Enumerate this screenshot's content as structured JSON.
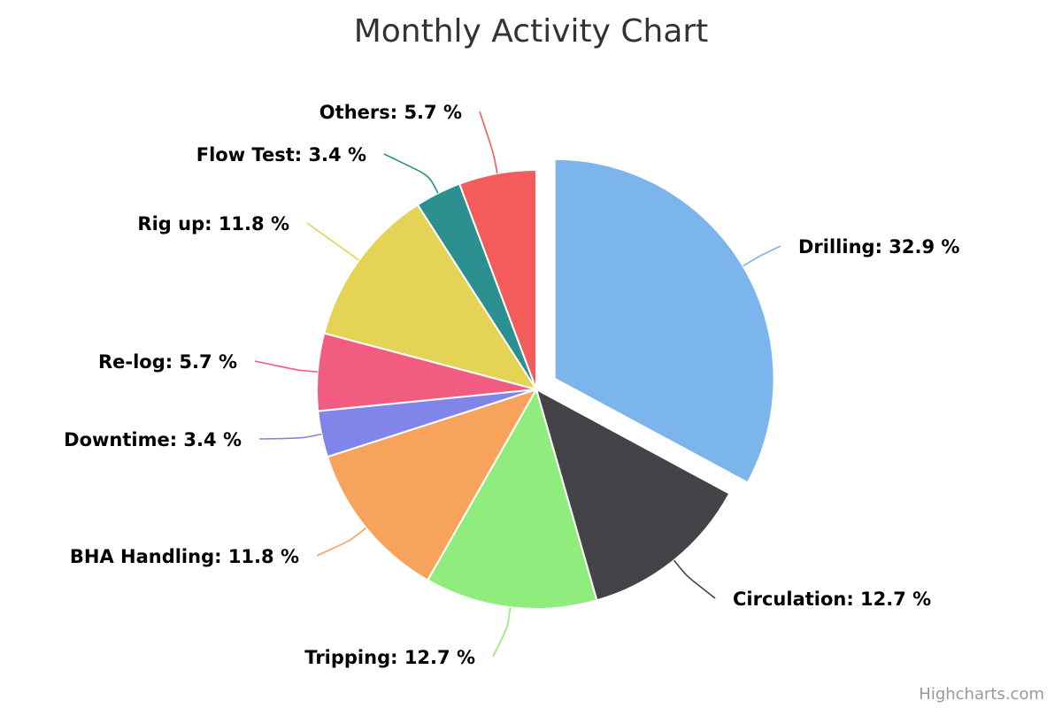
{
  "chart_data": {
    "type": "pie",
    "title": "Monthly Activity Chart",
    "label_suffix": " %",
    "slices": [
      {
        "name": "Drilling",
        "value": 32.9,
        "color": "#7cb5ec",
        "sliced": true
      },
      {
        "name": "Circulation",
        "value": 12.7,
        "color": "#434348"
      },
      {
        "name": "Tripping",
        "value": 12.7,
        "color": "#90ed7d"
      },
      {
        "name": "BHA Handling",
        "value": 11.8,
        "color": "#f7a35c"
      },
      {
        "name": "Downtime",
        "value": 3.4,
        "color": "#8085e9"
      },
      {
        "name": "Re-log",
        "value": 5.7,
        "color": "#f15c80"
      },
      {
        "name": "Rig up",
        "value": 11.8,
        "color": "#e4d354"
      },
      {
        "name": "Flow Test",
        "value": 3.4,
        "color": "#2b908f"
      },
      {
        "name": "Others",
        "value": 5.7,
        "color": "#f45b5b"
      }
    ]
  },
  "credits": "Highcharts.com"
}
